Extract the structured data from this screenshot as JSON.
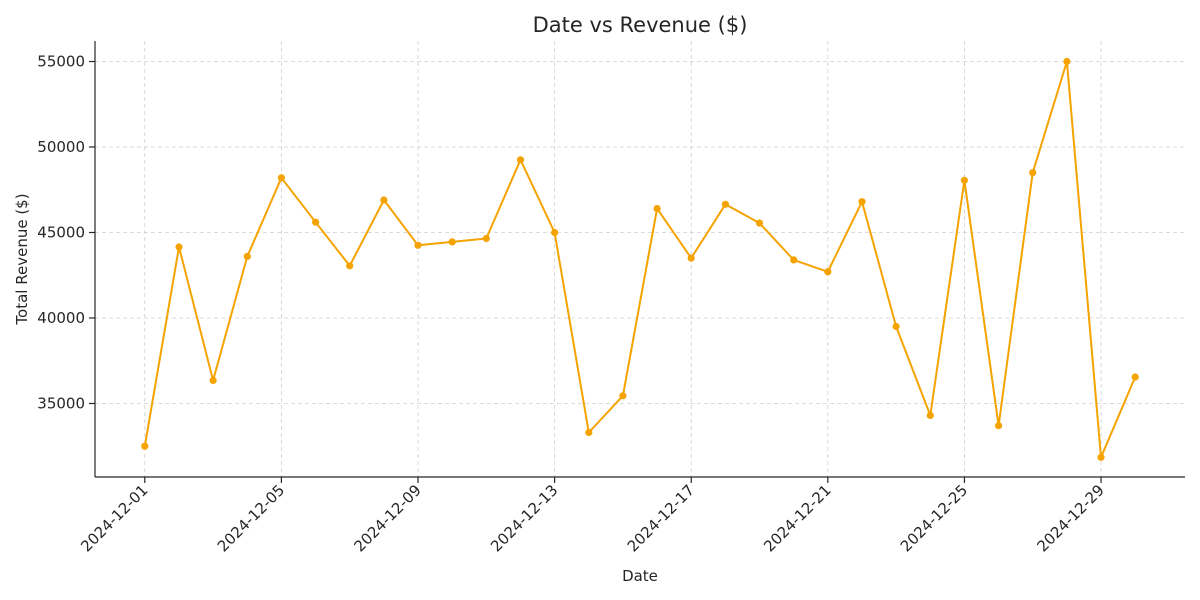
{
  "chart_data": {
    "type": "line",
    "title": "Date vs Revenue ($)",
    "xlabel": "Date",
    "ylabel": "Total Revenue ($)",
    "x": [
      "2024-12-01",
      "2024-12-02",
      "2024-12-03",
      "2024-12-04",
      "2024-12-05",
      "2024-12-06",
      "2024-12-07",
      "2024-12-08",
      "2024-12-09",
      "2024-12-10",
      "2024-12-11",
      "2024-12-12",
      "2024-12-13",
      "2024-12-14",
      "2024-12-15",
      "2024-12-16",
      "2024-12-17",
      "2024-12-18",
      "2024-12-19",
      "2024-12-20",
      "2024-12-21",
      "2024-12-22",
      "2024-12-23",
      "2024-12-24",
      "2024-12-25",
      "2024-12-26",
      "2024-12-27",
      "2024-12-28",
      "2024-12-29",
      "2024-12-30"
    ],
    "series": [
      {
        "values": [
          32500,
          44150,
          36350,
          43600,
          48200,
          45600,
          43050,
          46900,
          44250,
          44450,
          44650,
          49250,
          45000,
          33300,
          35450,
          46400,
          43500,
          46650,
          45550,
          43400,
          42700,
          46800,
          39500,
          34300,
          48050,
          33700,
          48500,
          55000,
          31850,
          36550
        ],
        "color": "#f5a300"
      }
    ],
    "x_tick_labels": [
      "2024-12-01",
      "2024-12-05",
      "2024-12-09",
      "2024-12-13",
      "2024-12-17",
      "2024-12-21",
      "2024-12-25",
      "2024-12-29"
    ],
    "y_ticks": [
      35000,
      40000,
      45000,
      50000,
      55000
    ],
    "y_tick_labels": [
      "35000",
      "40000",
      "45000",
      "50000",
      "55000"
    ],
    "xlim": [
      "2024-11-29 13:00",
      "2024-12-31 11:00"
    ],
    "ylim": [
      30700,
      56200
    ],
    "grid": true,
    "legend": "none"
  }
}
